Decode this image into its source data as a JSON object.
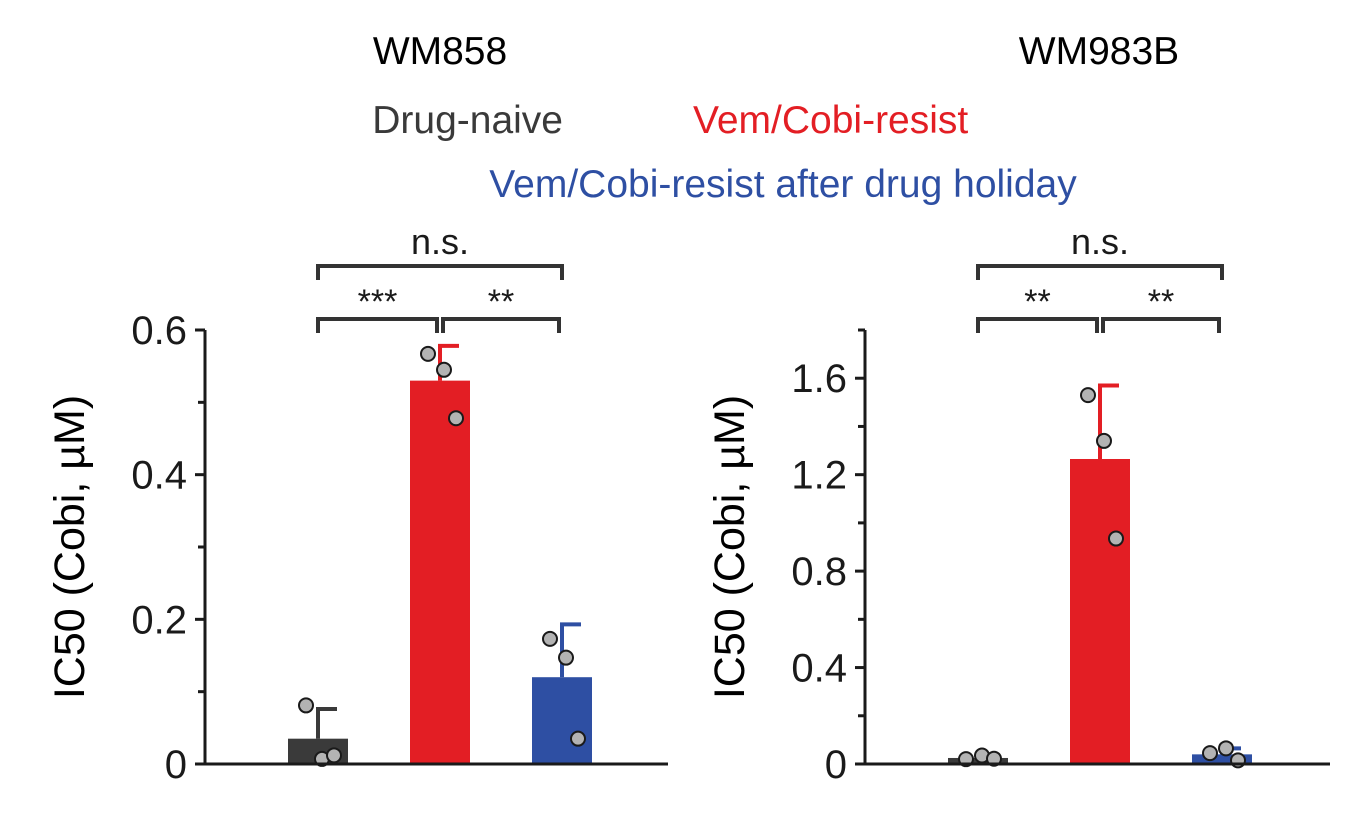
{
  "legend": {
    "items": [
      {
        "label": "Drug-naive",
        "color": "#3a3a3a"
      },
      {
        "label": "Vem/Cobi-resist",
        "color": "#e31e24"
      },
      {
        "label": "Vem/Cobi-resist after drug holiday",
        "color": "#2e4fa3"
      }
    ]
  },
  "colors": {
    "axis": "#1a1a1a",
    "bracket": "#333333",
    "point_fill": "#b3b3b3"
  },
  "chart_data": [
    {
      "type": "bar",
      "title": "WM858",
      "ylabel": "IC50 (Cobi, µM)",
      "ylim": [
        0,
        0.6
      ],
      "yticks": [
        0,
        0.2,
        0.4,
        0.6
      ],
      "ytick_labels": [
        "0",
        "0.2",
        "0.4",
        "0.6"
      ],
      "minor_yticks": [
        0.1,
        0.3,
        0.5
      ],
      "categories": [
        "Drug-naive",
        "Vem/Cobi-resist",
        "Vem/Cobi-resist after drug holiday"
      ],
      "colors": [
        "#3a3a3a",
        "#e31e24",
        "#2e4fa3"
      ],
      "values": [
        0.035,
        0.53,
        0.12
      ],
      "errors": [
        0.041,
        0.048,
        0.073
      ],
      "points": [
        [
          0.081,
          0.007,
          0.012
        ],
        [
          0.567,
          0.545,
          0.478
        ],
        [
          0.173,
          0.147,
          0.035
        ]
      ],
      "significance": [
        {
          "from": 0,
          "to": 1,
          "label": "***",
          "level": 1
        },
        {
          "from": 1,
          "to": 2,
          "label": "**",
          "level": 1
        },
        {
          "from": 0,
          "to": 2,
          "label": "n.s.",
          "level": 2
        }
      ]
    },
    {
      "type": "bar",
      "title": "WM983B",
      "ylabel": "IC50 (Cobi, µM)",
      "ylim": [
        0,
        1.8
      ],
      "yticks": [
        0,
        0.4,
        0.8,
        1.2,
        1.6
      ],
      "ytick_labels": [
        "0",
        "0.4",
        "0.8",
        "1.2",
        "1.6"
      ],
      "minor_yticks": [
        0.2,
        0.6,
        1.0,
        1.4,
        1.8
      ],
      "categories": [
        "Drug-naive",
        "Vem/Cobi-resist",
        "Vem/Cobi-resist after drug holiday"
      ],
      "colors": [
        "#3a3a3a",
        "#e31e24",
        "#2e4fa3"
      ],
      "values": [
        0.025,
        1.265,
        0.04
      ],
      "errors": [
        0.01,
        0.305,
        0.025
      ],
      "points": [
        [
          0.02,
          0.035,
          0.022
        ],
        [
          1.53,
          1.34,
          0.935
        ],
        [
          0.045,
          0.065,
          0.015
        ]
      ],
      "significance": [
        {
          "from": 0,
          "to": 1,
          "label": "**",
          "level": 1
        },
        {
          "from": 1,
          "to": 2,
          "label": "**",
          "level": 1
        },
        {
          "from": 0,
          "to": 2,
          "label": "n.s.",
          "level": 2
        }
      ]
    }
  ]
}
